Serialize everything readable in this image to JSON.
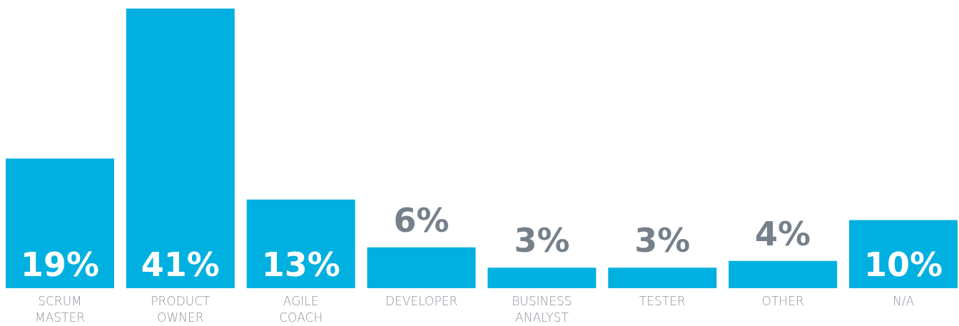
{
  "chart_data": {
    "type": "bar",
    "categories": [
      "SCRUM MASTER",
      "PRODUCT OWNER",
      "AGILE COACH",
      "DEVELOPER",
      "BUSINESS ANALYST",
      "TESTER",
      "OTHER",
      "N/A"
    ],
    "values": [
      19,
      41,
      13,
      6,
      3,
      3,
      4,
      10
    ],
    "value_labels": [
      "19%",
      "41%",
      "13%",
      "6%",
      "3%",
      "3%",
      "4%",
      "10%"
    ],
    "color": "#00b0e0"
  }
}
